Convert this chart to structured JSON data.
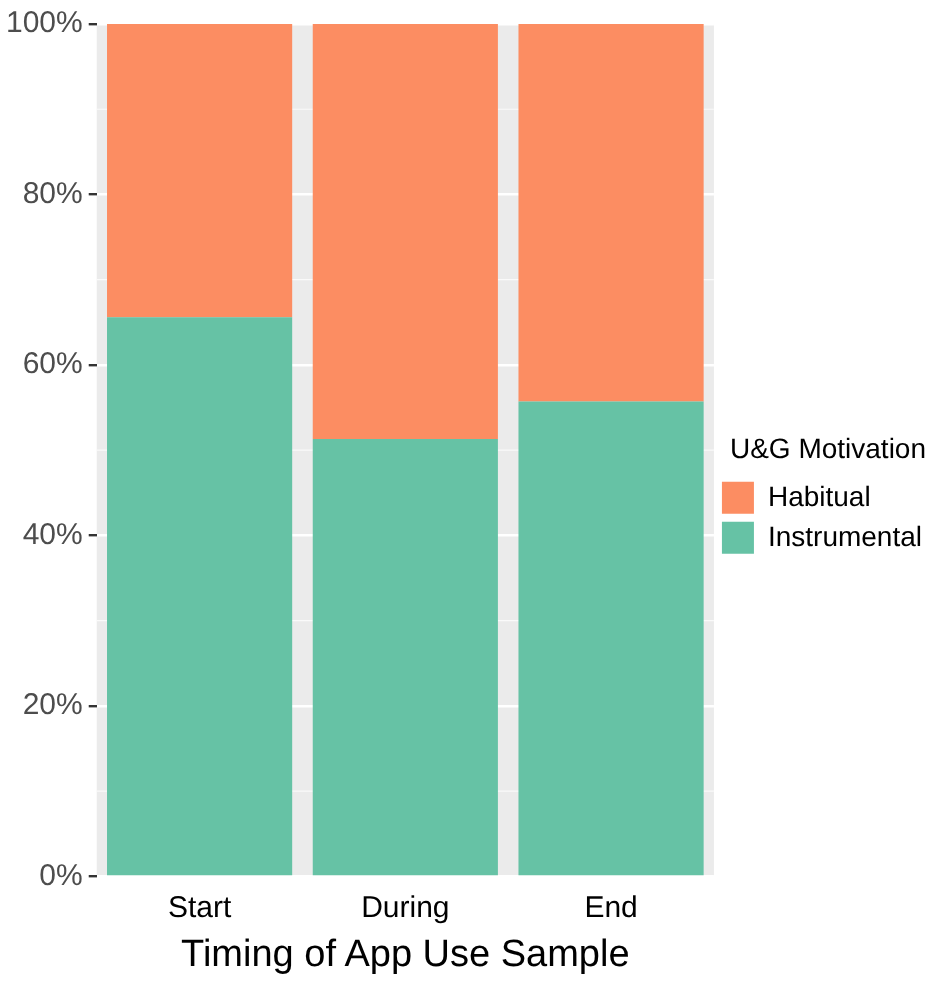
{
  "chart_data": {
    "type": "bar",
    "stacked": true,
    "xlabel": "Timing of App Use Sample",
    "legend_title": "U&G Motivation",
    "legend": "right",
    "grid": "y",
    "categories": [
      "Start",
      "During",
      "End"
    ],
    "series": [
      {
        "name": "Instrumental",
        "color": "#66c2a5",
        "values": [
          65.6,
          51.3,
          55.7
        ]
      },
      {
        "name": "Habitual",
        "color": "#fc8d62",
        "values": [
          34.4,
          48.7,
          44.3
        ]
      }
    ],
    "ylim": [
      0,
      100
    ],
    "yticks": [
      {
        "value": 0,
        "label": "0%"
      },
      {
        "value": 20,
        "label": "20%"
      },
      {
        "value": 40,
        "label": "40%"
      },
      {
        "value": 60,
        "label": "60%"
      },
      {
        "value": 80,
        "label": "80%"
      },
      {
        "value": 100,
        "label": "100%"
      }
    ]
  }
}
